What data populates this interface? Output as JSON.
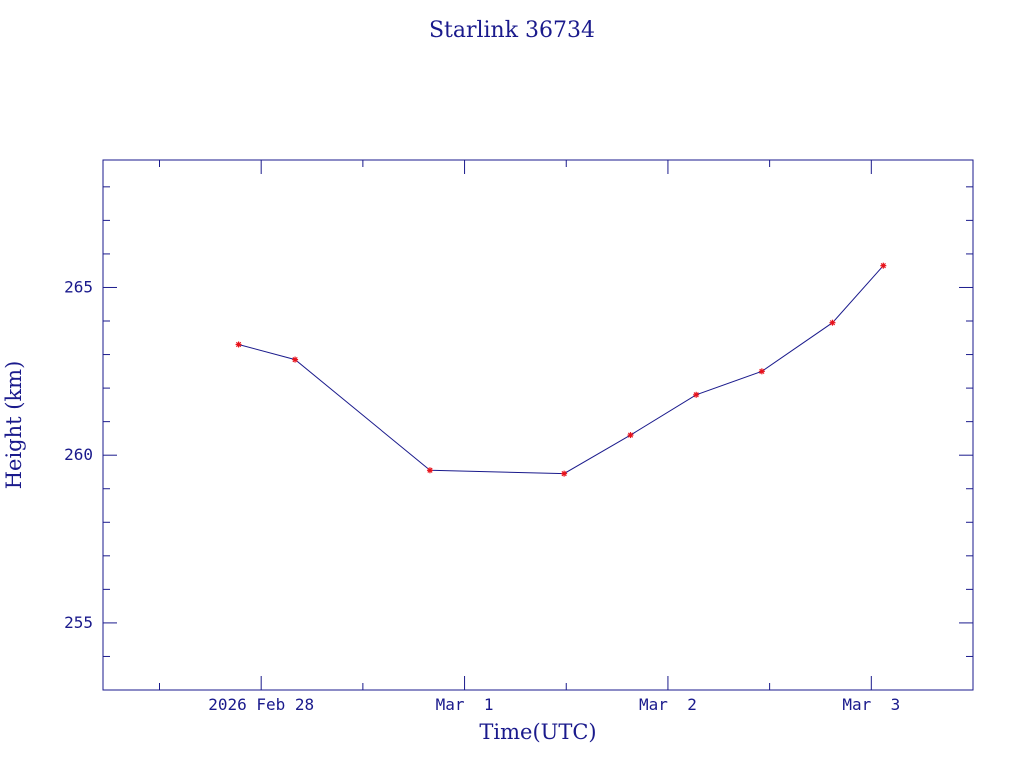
{
  "colors": {
    "axis": "#1a1a8c",
    "line": "#1a1a8c",
    "marker": "#e8121b",
    "background": "#ffffff"
  },
  "chart_data": {
    "type": "line",
    "title": "Starlink 36734",
    "xlabel": "Time(UTC)",
    "ylabel": "Height (km)",
    "x_scale": "time",
    "xlim": [
      "2026-02-27T05:20",
      "2026-03-03T12:00"
    ],
    "ylim": [
      253.0,
      268.8
    ],
    "grid": false,
    "y_ticks": [
      {
        "value": 255,
        "label": "255"
      },
      {
        "value": 260,
        "label": "260"
      },
      {
        "value": 265,
        "label": "265"
      }
    ],
    "x_ticks": [
      {
        "value": "2026-02-28T00:00",
        "label": "2026 Feb 28"
      },
      {
        "value": "2026-03-01T00:00",
        "label": "Mar  1"
      },
      {
        "value": "2026-03-02T00:00",
        "label": "Mar  2"
      },
      {
        "value": "2026-03-03T00:00",
        "label": "Mar  3"
      }
    ],
    "series": [
      {
        "x": [
          "2026-02-27T21:20",
          "2026-02-28T04:00",
          "2026-02-28T19:55",
          "2026-03-01T11:45",
          "2026-03-01T19:35",
          "2026-03-02T03:20",
          "2026-03-02T11:05",
          "2026-03-02T19:25",
          "2026-03-03T01:25"
        ],
        "y": [
          263.3,
          262.85,
          259.55,
          259.45,
          260.6,
          261.8,
          262.5,
          263.95,
          265.65
        ]
      }
    ]
  }
}
